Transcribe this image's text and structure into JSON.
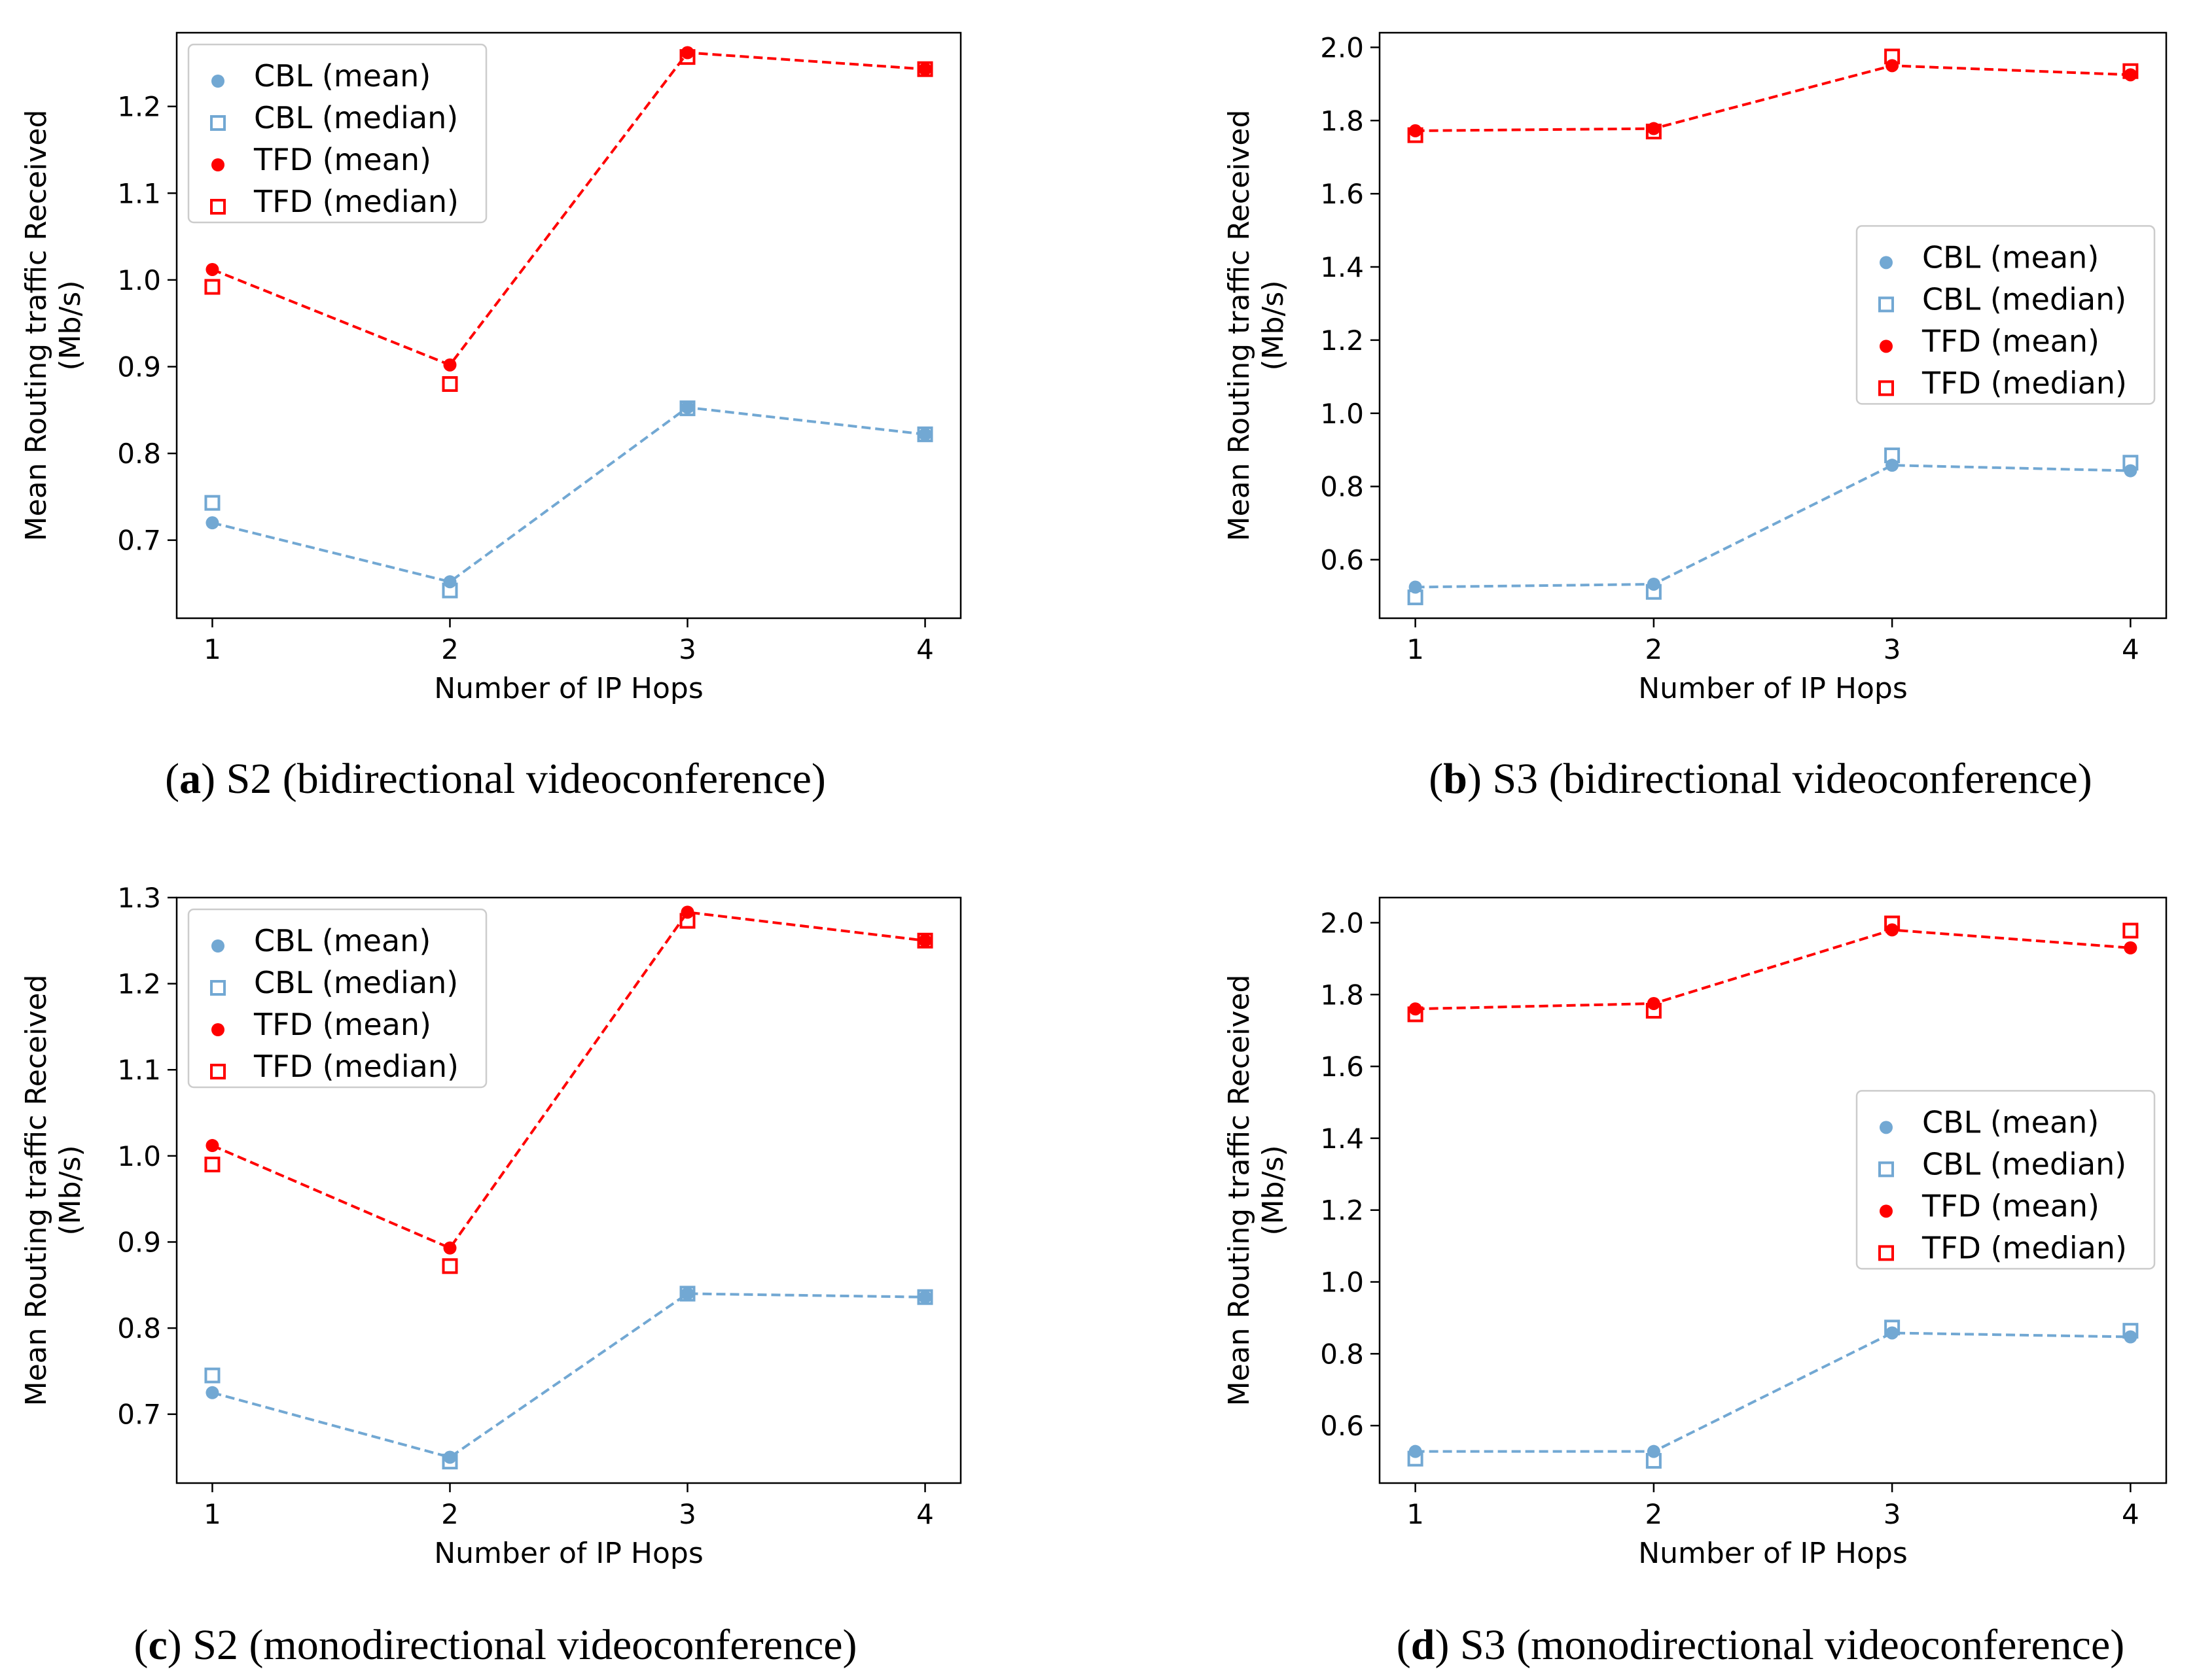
{
  "chart_data": [
    {
      "type": "line",
      "panel": "a",
      "caption_letter": "a",
      "caption_text": "S2 (bidirectional videoconference)",
      "xlabel": "Number of IP Hops",
      "ylabel_line1": "Mean Routing traffic Received",
      "ylabel_line2": "(Mb/s)",
      "x": [
        1,
        2,
        3,
        4
      ],
      "xticks": [
        "1",
        "2",
        "3",
        "4"
      ],
      "xlim": [
        0.85,
        4.15
      ],
      "ylim": [
        0.61,
        1.285
      ],
      "yticks": [
        0.7,
        0.8,
        0.9,
        1.0,
        1.1,
        1.2
      ],
      "ytick_labels": [
        "0.7",
        "0.8",
        "0.9",
        "1.0",
        "1.1",
        "1.2"
      ],
      "legend_position": "top-left",
      "series": [
        {
          "name": "CBL (mean)",
          "color": "#72a8d3",
          "marker": "circle",
          "line": true,
          "values": [
            0.72,
            0.652,
            0.853,
            0.822
          ]
        },
        {
          "name": "CBL (median)",
          "color": "#72a8d3",
          "marker": "square",
          "line": false,
          "values": [
            0.743,
            0.642,
            0.852,
            0.822
          ]
        },
        {
          "name": "TFD (mean)",
          "color": "#ff0000",
          "marker": "circle",
          "line": true,
          "values": [
            1.012,
            0.902,
            1.262,
            1.243
          ]
        },
        {
          "name": "TFD (median)",
          "color": "#ff0000",
          "marker": "square",
          "line": false,
          "values": [
            0.992,
            0.88,
            1.257,
            1.243
          ]
        }
      ]
    },
    {
      "type": "line",
      "panel": "b",
      "caption_letter": "b",
      "caption_text": "S3 (bidirectional videoconference)",
      "xlabel": "Number of IP Hops",
      "ylabel_line1": "Mean Routing traffic Received",
      "ylabel_line2": "(Mb/s)",
      "x": [
        1,
        2,
        3,
        4
      ],
      "xticks": [
        "1",
        "2",
        "3",
        "4"
      ],
      "xlim": [
        0.85,
        4.15
      ],
      "ylim": [
        0.44,
        2.04
      ],
      "yticks": [
        0.6,
        0.8,
        1.0,
        1.2,
        1.4,
        1.6,
        1.8,
        2.0
      ],
      "ytick_labels": [
        "0.6",
        "0.8",
        "1.0",
        "1.2",
        "1.4",
        "1.6",
        "1.8",
        "2.0"
      ],
      "legend_position": "center-right",
      "series": [
        {
          "name": "CBL (mean)",
          "color": "#72a8d3",
          "marker": "circle",
          "line": true,
          "values": [
            0.525,
            0.533,
            0.858,
            0.843
          ]
        },
        {
          "name": "CBL (median)",
          "color": "#72a8d3",
          "marker": "square",
          "line": false,
          "values": [
            0.497,
            0.512,
            0.885,
            0.865
          ]
        },
        {
          "name": "TFD (mean)",
          "color": "#ff0000",
          "marker": "circle",
          "line": true,
          "values": [
            1.772,
            1.778,
            1.95,
            1.925
          ]
        },
        {
          "name": "TFD (median)",
          "color": "#ff0000",
          "marker": "square",
          "line": false,
          "values": [
            1.76,
            1.77,
            1.975,
            1.935
          ]
        }
      ]
    },
    {
      "type": "line",
      "panel": "c",
      "caption_letter": "c",
      "caption_text": "S2 (monodirectional videoconference)",
      "xlabel": "Number of IP Hops",
      "ylabel_line1": "Mean Routing traffic Received",
      "ylabel_line2": "(Mb/s)",
      "x": [
        1,
        2,
        3,
        4
      ],
      "xticks": [
        "1",
        "2",
        "3",
        "4"
      ],
      "xlim": [
        0.85,
        4.15
      ],
      "ylim": [
        0.62,
        1.3
      ],
      "yticks": [
        0.7,
        0.8,
        0.9,
        1.0,
        1.1,
        1.2,
        1.3
      ],
      "ytick_labels": [
        "0.7",
        "0.8",
        "0.9",
        "1.0",
        "1.1",
        "1.2",
        "1.3"
      ],
      "legend_position": "top-left",
      "series": [
        {
          "name": "CBL (mean)",
          "color": "#72a8d3",
          "marker": "circle",
          "line": true,
          "values": [
            0.725,
            0.65,
            0.84,
            0.836
          ]
        },
        {
          "name": "CBL (median)",
          "color": "#72a8d3",
          "marker": "square",
          "line": false,
          "values": [
            0.745,
            0.645,
            0.84,
            0.836
          ]
        },
        {
          "name": "TFD (mean)",
          "color": "#ff0000",
          "marker": "circle",
          "line": true,
          "values": [
            1.012,
            0.893,
            1.283,
            1.25
          ]
        },
        {
          "name": "TFD (median)",
          "color": "#ff0000",
          "marker": "square",
          "line": false,
          "values": [
            0.99,
            0.872,
            1.273,
            1.25
          ]
        }
      ]
    },
    {
      "type": "line",
      "panel": "d",
      "caption_letter": "d",
      "caption_text": "S3 (monodirectional videoconference)",
      "xlabel": "Number of IP Hops",
      "ylabel_line1": "Mean Routing traffic Received",
      "ylabel_line2": "(Mb/s)",
      "x": [
        1,
        2,
        3,
        4
      ],
      "xticks": [
        "1",
        "2",
        "3",
        "4"
      ],
      "xlim": [
        0.85,
        4.15
      ],
      "ylim": [
        0.44,
        2.07
      ],
      "yticks": [
        0.6,
        0.8,
        1.0,
        1.2,
        1.4,
        1.6,
        1.8,
        2.0
      ],
      "ytick_labels": [
        "0.6",
        "0.8",
        "1.0",
        "1.2",
        "1.4",
        "1.6",
        "1.8",
        "2.0"
      ],
      "legend_position": "center-right",
      "series": [
        {
          "name": "CBL (mean)",
          "color": "#72a8d3",
          "marker": "circle",
          "line": true,
          "values": [
            0.528,
            0.528,
            0.858,
            0.847
          ]
        },
        {
          "name": "CBL (median)",
          "color": "#72a8d3",
          "marker": "square",
          "line": false,
          "values": [
            0.508,
            0.502,
            0.873,
            0.864
          ]
        },
        {
          "name": "TFD (mean)",
          "color": "#ff0000",
          "marker": "circle",
          "line": true,
          "values": [
            1.76,
            1.775,
            1.98,
            1.93
          ]
        },
        {
          "name": "TFD (median)",
          "color": "#ff0000",
          "marker": "square",
          "line": false,
          "values": [
            1.745,
            1.755,
            1.998,
            1.978
          ]
        }
      ]
    }
  ]
}
